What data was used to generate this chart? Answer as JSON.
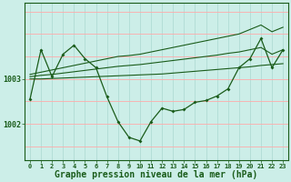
{
  "bg_color": "#cceee8",
  "grid_h_color": "#ffaaaa",
  "grid_v_color": "#aad8d0",
  "line_color": "#1a5c1a",
  "xlabel": "Graphe pression niveau de la mer (hPa)",
  "xlabel_fontsize": 7,
  "tick_fontsize": 5,
  "ylim": [
    1001.2,
    1004.7
  ],
  "xlim": [
    -0.5,
    23.5
  ],
  "yticks": [
    1002,
    1003
  ],
  "xticks": [
    0,
    1,
    2,
    3,
    4,
    5,
    6,
    7,
    8,
    9,
    10,
    11,
    12,
    13,
    14,
    15,
    16,
    17,
    18,
    19,
    20,
    21,
    22,
    23
  ],
  "series_main": [
    1002.55,
    1003.65,
    1003.05,
    1003.55,
    1003.75,
    1003.45,
    1003.25,
    1002.6,
    1002.05,
    1001.7,
    1001.62,
    1002.05,
    1002.35,
    1002.28,
    1002.32,
    1002.48,
    1002.52,
    1002.62,
    1002.78,
    1003.25,
    1003.45,
    1003.9,
    1003.25,
    1003.65
  ],
  "series_trend1": [
    1003.1,
    1003.15,
    1003.2,
    1003.25,
    1003.3,
    1003.35,
    1003.4,
    1003.45,
    1003.5,
    1003.52,
    1003.55,
    1003.6,
    1003.65,
    1003.7,
    1003.75,
    1003.8,
    1003.85,
    1003.9,
    1003.95,
    1004.0,
    1004.1,
    1004.2,
    1004.05,
    1004.15
  ],
  "series_trend2": [
    1003.05,
    1003.08,
    1003.1,
    1003.13,
    1003.16,
    1003.19,
    1003.22,
    1003.25,
    1003.28,
    1003.3,
    1003.32,
    1003.35,
    1003.38,
    1003.41,
    1003.44,
    1003.47,
    1003.5,
    1003.53,
    1003.57,
    1003.6,
    1003.65,
    1003.7,
    1003.55,
    1003.65
  ],
  "series_flat": [
    1003.0,
    1003.0,
    1003.01,
    1003.02,
    1003.03,
    1003.04,
    1003.05,
    1003.06,
    1003.07,
    1003.08,
    1003.09,
    1003.1,
    1003.11,
    1003.13,
    1003.15,
    1003.17,
    1003.19,
    1003.21,
    1003.23,
    1003.25,
    1003.27,
    1003.3,
    1003.32,
    1003.34
  ]
}
